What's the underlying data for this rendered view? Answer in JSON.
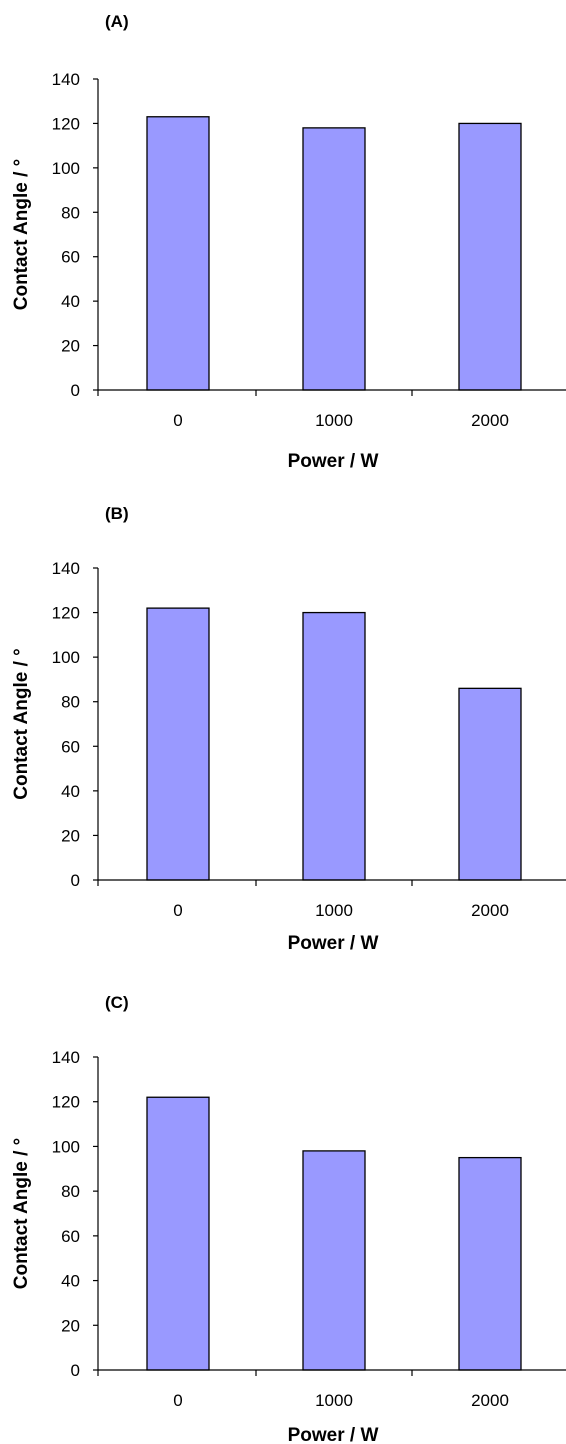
{
  "chart_data": [
    {
      "type": "bar",
      "panel_label": "(A)",
      "categories": [
        "0",
        "1000",
        "2000"
      ],
      "values": [
        123,
        118,
        120
      ],
      "xlabel": "Power / W",
      "ylabel": "Contact Angle / °",
      "ylim": [
        0,
        140
      ],
      "yticks": [
        "0",
        "20",
        "40",
        "60",
        "80",
        "100",
        "120",
        "140"
      ],
      "grid": false,
      "bar_color": "#9999ff"
    },
    {
      "type": "bar",
      "panel_label": "(B)",
      "categories": [
        "0",
        "1000",
        "2000"
      ],
      "values": [
        122,
        120,
        86
      ],
      "xlabel": "Power / W",
      "ylabel": "Contact Angle / °",
      "ylim": [
        0,
        140
      ],
      "yticks": [
        "0",
        "20",
        "40",
        "60",
        "80",
        "100",
        "120",
        "140"
      ],
      "grid": false,
      "bar_color": "#9999ff"
    },
    {
      "type": "bar",
      "panel_label": "(C)",
      "categories": [
        "0",
        "1000",
        "2000"
      ],
      "values": [
        122,
        98,
        95
      ],
      "xlabel": "Power / W",
      "ylabel": "Contact Angle / °",
      "ylim": [
        0,
        140
      ],
      "yticks": [
        "0",
        "20",
        "40",
        "60",
        "80",
        "100",
        "120",
        "140"
      ],
      "grid": false,
      "bar_color": "#9999ff"
    }
  ]
}
